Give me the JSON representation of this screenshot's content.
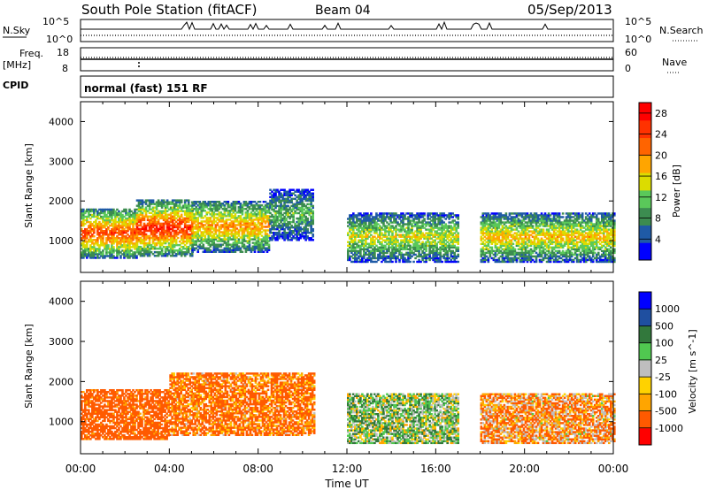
{
  "header": {
    "station": "South Pole Station (fitACF)",
    "beam": "Beam 04",
    "date": "05/Sep/2013"
  },
  "aux_panels": {
    "nsky_label": "N.Sky",
    "nsearch_label": "N.Search",
    "noise_ticks_left": [
      "10^5",
      "10^0"
    ],
    "noise_ticks_right": [
      "10^5",
      "10^0"
    ],
    "freq_label": "Freq.",
    "freq_unit": "[MHz]",
    "freq_ticks": [
      "18",
      "8"
    ],
    "nave_label": "Nave",
    "nave_ticks": [
      "60",
      "0"
    ],
    "cpid_label": "CPID",
    "cpid_value": "normal (fast) 151 RF"
  },
  "colors": {
    "power": [
      "#0000ff",
      "#1f5aa6",
      "#3c8c50",
      "#5ac85a",
      "#dcdc00",
      "#ffa500",
      "#ff6400",
      "#ff3200",
      "#ff0000"
    ],
    "velocity": [
      "#ff0000",
      "#ff5a00",
      "#ffa500",
      "#ffd200",
      "#bebebe",
      "#50c850",
      "#32783c",
      "#1f4fa0",
      "#0000ff"
    ]
  },
  "chart_data": [
    {
      "type": "heatmap",
      "name": "power",
      "xlabel": "Time UT",
      "ylabel": "Slant Range [km]",
      "x_ticks": [
        "00:00",
        "04:00",
        "08:00",
        "12:00",
        "16:00",
        "20:00",
        "00:00"
      ],
      "x_range_hours": [
        0,
        24
      ],
      "ylim": [
        200,
        4500
      ],
      "y_ticks": [
        1000,
        2000,
        3000,
        4000
      ],
      "colorbar_label": "Power [dB]",
      "colorbar_ticks": [
        "4",
        "8",
        "12",
        "16",
        "20",
        "24",
        "28"
      ],
      "colorbar_range": [
        0,
        30
      ],
      "regions": [
        {
          "t0": 0.0,
          "t1": 2.5,
          "r0": 550,
          "r1": 1800,
          "v": 22
        },
        {
          "t0": 2.5,
          "t1": 5.0,
          "r0": 600,
          "r1": 2000,
          "v": 24
        },
        {
          "t0": 5.0,
          "t1": 8.5,
          "r0": 700,
          "r1": 2000,
          "v": 18
        },
        {
          "t0": 8.5,
          "t1": 10.5,
          "r0": 1000,
          "r1": 2300,
          "v": 10
        },
        {
          "t0": 12.0,
          "t1": 17.0,
          "r0": 450,
          "r1": 1700,
          "v": 14
        },
        {
          "t0": 18.0,
          "t1": 24.0,
          "r0": 450,
          "r1": 1700,
          "v": 16
        }
      ]
    },
    {
      "type": "heatmap",
      "name": "velocity",
      "xlabel": "Time UT",
      "ylabel": "Slant Range [km]",
      "x_ticks": [
        "00:00",
        "04:00",
        "08:00",
        "12:00",
        "16:00",
        "20:00",
        "00:00"
      ],
      "x_range_hours": [
        0,
        24
      ],
      "ylim": [
        200,
        4500
      ],
      "y_ticks": [
        1000,
        2000,
        3000,
        4000
      ],
      "colorbar_label": "Velocity [m s^-1]",
      "colorbar_ticks": [
        "1000",
        "500",
        "100",
        "25",
        "-25",
        "-100",
        "-500",
        "-1000"
      ],
      "regions": [
        {
          "t0": 0.0,
          "t1": 4.0,
          "r0": 550,
          "r1": 1800,
          "v": -200
        },
        {
          "t0": 4.0,
          "t1": 10.5,
          "r0": 650,
          "r1": 2200,
          "v": -150
        },
        {
          "t0": 12.0,
          "t1": 17.0,
          "r0": 450,
          "r1": 1700,
          "v": 50
        },
        {
          "t0": 18.0,
          "t1": 24.0,
          "r0": 450,
          "r1": 1700,
          "v": -100
        }
      ]
    }
  ]
}
